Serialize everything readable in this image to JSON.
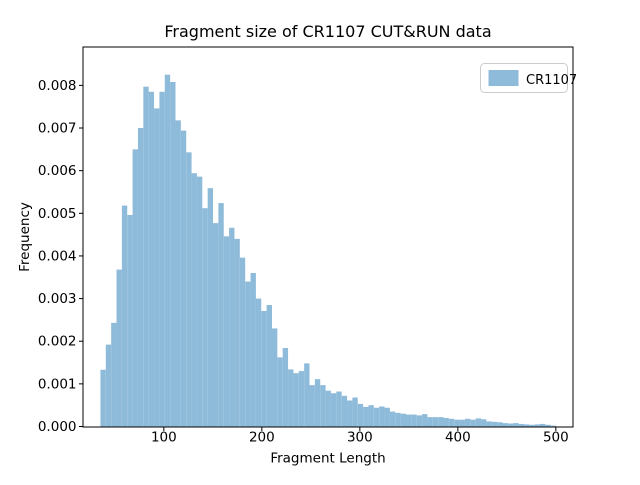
{
  "chart_data": {
    "type": "bar",
    "subtype": "histogram",
    "title": "Fragment size of CR1107 CUT&RUN data",
    "xlabel": "Fragment Length",
    "ylabel": "Frequency",
    "xlim": [
      17.5,
      517.5
    ],
    "ylim": [
      0,
      0.0089
    ],
    "grid": false,
    "x_ticks": {
      "values": [
        100,
        200,
        300,
        400,
        500
      ],
      "labels": [
        "100",
        "200",
        "300",
        "400",
        "500"
      ]
    },
    "y_ticks": {
      "values": [
        0.0,
        0.001,
        0.002,
        0.003,
        0.004,
        0.005,
        0.006,
        0.007,
        0.008
      ],
      "labels": [
        "0.000",
        "0.001",
        "0.002",
        "0.003",
        "0.004",
        "0.005",
        "0.006",
        "0.007",
        "0.008"
      ]
    },
    "legend": {
      "position": "upper right",
      "entries": [
        {
          "label": "CR1107",
          "color": "#8fbbda"
        }
      ]
    },
    "series": [
      {
        "name": "CR1107",
        "color": "#8fbbda",
        "bin_start": 35.3,
        "bin_width": 5.47,
        "frequencies": [
          0.00133,
          0.00192,
          0.00243,
          0.00368,
          0.00518,
          0.00496,
          0.0065,
          0.007,
          0.00797,
          0.00785,
          0.00746,
          0.00785,
          0.00825,
          0.00808,
          0.00718,
          0.00694,
          0.00643,
          0.00594,
          0.00586,
          0.00512,
          0.00559,
          0.00477,
          0.00524,
          0.00446,
          0.00466,
          0.0044,
          0.00396,
          0.0034,
          0.0036,
          0.003,
          0.00271,
          0.00285,
          0.0023,
          0.00162,
          0.00184,
          0.00134,
          0.00125,
          0.0013,
          0.00148,
          0.00097,
          0.00111,
          0.00097,
          0.00084,
          0.00078,
          0.00082,
          0.00072,
          0.00061,
          0.00068,
          0.00053,
          0.00046,
          0.0005,
          0.00044,
          0.00047,
          0.00044,
          0.00035,
          0.00032,
          0.0003,
          0.00028,
          0.00028,
          0.00026,
          0.00029,
          0.00022,
          0.00022,
          0.00022,
          0.0002,
          0.00018,
          0.00016,
          0.00016,
          0.00018,
          0.00016,
          0.00019,
          0.00017,
          0.00012,
          0.00011,
          0.0001,
          8e-05,
          7e-05,
          8e-05,
          6e-05,
          5e-05,
          4e-05,
          5e-05,
          6e-05,
          4e-05,
          2e-05
        ]
      }
    ]
  }
}
